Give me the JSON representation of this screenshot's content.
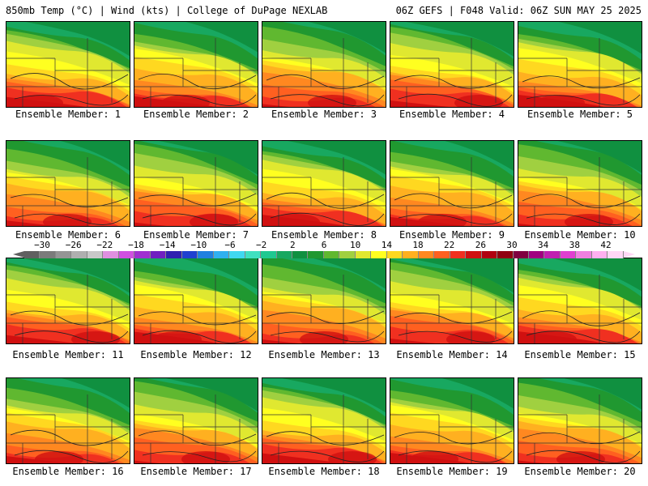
{
  "header": {
    "left": "850mb Temp (°C) | Wind (kts) | College of DuPage NEXLAB",
    "right": "06Z GEFS | F048 Valid: 06Z SUN MAY 25 2025"
  },
  "colorbar": {
    "ticks": [
      "−30",
      "−26",
      "−22",
      "−18",
      "−14",
      "−10",
      "−6",
      "−2",
      "2",
      "6",
      "10",
      "14",
      "18",
      "22",
      "26",
      "30",
      "34",
      "38",
      "42"
    ],
    "colors": [
      "#606060",
      "#7b7b7b",
      "#959595",
      "#afafaf",
      "#c8c8c8",
      "#e090e0",
      "#d050e0",
      "#a030d0",
      "#7020c0",
      "#3020b0",
      "#2040d0",
      "#2080e0",
      "#30b0f0",
      "#40d8f0",
      "#40e0c0",
      "#20c890",
      "#18a860",
      "#109040",
      "#209830",
      "#60b830",
      "#a0d040",
      "#e0e830",
      "#ffff20",
      "#ffd820",
      "#ffb020",
      "#ff8820",
      "#ff6020",
      "#f03020",
      "#d01010",
      "#b00010",
      "#900010",
      "#800040",
      "#a00080",
      "#c020b0",
      "#e040d0",
      "#f080e0",
      "#ffb0f0",
      "#ffd7f5"
    ]
  },
  "members": [
    {
      "label": "Ensemble Member: 1"
    },
    {
      "label": "Ensemble Member: 2"
    },
    {
      "label": "Ensemble Member: 3"
    },
    {
      "label": "Ensemble Member: 4"
    },
    {
      "label": "Ensemble Member: 5"
    },
    {
      "label": "Ensemble Member: 6"
    },
    {
      "label": "Ensemble Member: 7"
    },
    {
      "label": "Ensemble Member: 8"
    },
    {
      "label": "Ensemble Member: 9"
    },
    {
      "label": "Ensemble Member: 10"
    },
    {
      "label": "Ensemble Member: 11"
    },
    {
      "label": "Ensemble Member: 12"
    },
    {
      "label": "Ensemble Member: 13"
    },
    {
      "label": "Ensemble Member: 14"
    },
    {
      "label": "Ensemble Member: 15"
    },
    {
      "label": "Ensemble Member: 16"
    },
    {
      "label": "Ensemble Member: 17"
    },
    {
      "label": "Ensemble Member: 18"
    },
    {
      "label": "Ensemble Member: 19"
    },
    {
      "label": "Ensemble Member: 20"
    }
  ]
}
